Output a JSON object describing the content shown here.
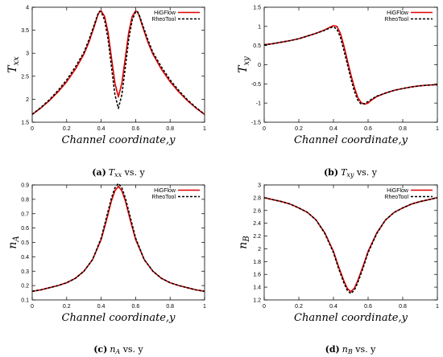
{
  "legend": {
    "series_a": "HiGFlow",
    "series_b": "RheoTool"
  },
  "colors": {
    "series_a": "#e00000",
    "series_b": "#000000"
  },
  "chart_data": [
    {
      "type": "line",
      "ylabel_main": "T",
      "ylabel_sub": "xx",
      "xlabel": "Channel coordinate,y",
      "caption_tag": "(a)",
      "caption_main": "T",
      "caption_sub": "xx",
      "caption_tail": " vs. y",
      "xlim": [
        0,
        1
      ],
      "ylim": [
        1.5,
        4
      ],
      "xticks": [
        "0",
        "0.2",
        "0.4",
        "0.6",
        "0.8",
        "1"
      ],
      "yticks": [
        "1.5",
        "2",
        "2.5",
        "3",
        "3.5",
        "4"
      ],
      "legend_position": "top-right",
      "grid": false,
      "series": [
        {
          "name": "HiGFlow",
          "x": [
            0,
            0.05,
            0.1,
            0.15,
            0.2,
            0.25,
            0.3,
            0.33,
            0.36,
            0.38,
            0.39,
            0.4,
            0.42,
            0.44,
            0.46,
            0.48,
            0.5,
            0.52,
            0.54,
            0.56,
            0.58,
            0.6,
            0.61,
            0.62,
            0.64,
            0.67,
            0.7,
            0.75,
            0.8,
            0.85,
            0.9,
            0.95,
            1
          ],
          "y": [
            1.67,
            1.81,
            1.97,
            2.16,
            2.38,
            2.65,
            2.98,
            3.25,
            3.58,
            3.82,
            3.9,
            3.92,
            3.8,
            3.45,
            2.9,
            2.35,
            2.05,
            2.35,
            2.9,
            3.45,
            3.8,
            3.92,
            3.9,
            3.82,
            3.58,
            3.25,
            2.98,
            2.65,
            2.38,
            2.16,
            1.97,
            1.81,
            1.67
          ]
        },
        {
          "name": "RheoTool",
          "x": [
            0,
            0.05,
            0.1,
            0.15,
            0.2,
            0.25,
            0.3,
            0.33,
            0.36,
            0.38,
            0.39,
            0.4,
            0.42,
            0.44,
            0.46,
            0.48,
            0.5,
            0.52,
            0.54,
            0.56,
            0.58,
            0.6,
            0.61,
            0.62,
            0.64,
            0.67,
            0.7,
            0.75,
            0.8,
            0.85,
            0.9,
            0.95,
            1
          ],
          "y": [
            1.67,
            1.82,
            1.99,
            2.19,
            2.42,
            2.7,
            3.02,
            3.3,
            3.62,
            3.84,
            3.91,
            3.9,
            3.72,
            3.3,
            2.7,
            2.1,
            1.8,
            2.1,
            2.7,
            3.3,
            3.72,
            3.9,
            3.91,
            3.84,
            3.62,
            3.3,
            3.02,
            2.7,
            2.42,
            2.19,
            1.99,
            1.82,
            1.67
          ]
        }
      ]
    },
    {
      "type": "line",
      "ylabel_main": "T",
      "ylabel_sub": "xy",
      "xlabel": "Channel coordinate,y",
      "caption_tag": "(b)",
      "caption_main": "T",
      "caption_sub": "xy",
      "caption_tail": " vs. y",
      "xlim": [
        0,
        1
      ],
      "ylim": [
        -1.5,
        1.5
      ],
      "xticks": [
        "0",
        "0.2",
        "0.4",
        "0.6",
        "0.8",
        "1"
      ],
      "yticks": [
        "-1.5",
        "-1",
        "-0.5",
        "0",
        "0.5",
        "1",
        "1.5"
      ],
      "legend_position": "top-right",
      "grid": false,
      "series": [
        {
          "name": "HiGFlow",
          "x": [
            0,
            0.05,
            0.1,
            0.15,
            0.2,
            0.25,
            0.3,
            0.35,
            0.38,
            0.4,
            0.42,
            0.44,
            0.46,
            0.48,
            0.5,
            0.52,
            0.54,
            0.56,
            0.58,
            0.6,
            0.62,
            0.65,
            0.7,
            0.75,
            0.8,
            0.85,
            0.9,
            0.95,
            1
          ],
          "y": [
            0.52,
            0.55,
            0.59,
            0.63,
            0.68,
            0.75,
            0.82,
            0.91,
            0.98,
            1.02,
            1.0,
            0.82,
            0.5,
            0.12,
            -0.25,
            -0.58,
            -0.85,
            -0.99,
            -1.03,
            -1.0,
            -0.92,
            -0.83,
            -0.74,
            -0.67,
            -0.62,
            -0.58,
            -0.55,
            -0.53,
            -0.52
          ]
        },
        {
          "name": "RheoTool",
          "x": [
            0,
            0.05,
            0.1,
            0.15,
            0.2,
            0.25,
            0.3,
            0.35,
            0.38,
            0.4,
            0.42,
            0.44,
            0.46,
            0.48,
            0.5,
            0.52,
            0.54,
            0.56,
            0.58,
            0.6,
            0.62,
            0.65,
            0.7,
            0.75,
            0.8,
            0.85,
            0.9,
            0.95,
            1
          ],
          "y": [
            0.52,
            0.55,
            0.59,
            0.63,
            0.68,
            0.75,
            0.82,
            0.9,
            0.96,
            0.99,
            0.93,
            0.72,
            0.38,
            0.02,
            -0.35,
            -0.68,
            -0.92,
            -1.03,
            -1.01,
            -0.96,
            -0.9,
            -0.82,
            -0.74,
            -0.67,
            -0.62,
            -0.58,
            -0.55,
            -0.53,
            -0.52
          ]
        }
      ]
    },
    {
      "type": "line",
      "ylabel_main": "n",
      "ylabel_sub": "A",
      "xlabel": "Channel coordinate,y",
      "caption_tag": "(c)",
      "caption_main": "n",
      "caption_sub": "A",
      "caption_tail": " vs. y",
      "xlim": [
        0,
        1
      ],
      "ylim": [
        0.1,
        0.9
      ],
      "xticks": [
        "0",
        "0.2",
        "0.4",
        "0.6",
        "0.8",
        "1"
      ],
      "yticks": [
        "0.1",
        "0.2",
        "0.3",
        "0.4",
        "0.5",
        "0.6",
        "0.7",
        "0.8",
        "0.9"
      ],
      "legend_position": "top-right",
      "grid": false,
      "series": [
        {
          "name": "HiGFlow",
          "x": [
            0,
            0.05,
            0.1,
            0.15,
            0.2,
            0.25,
            0.3,
            0.35,
            0.4,
            0.43,
            0.46,
            0.48,
            0.5,
            0.52,
            0.54,
            0.57,
            0.6,
            0.65,
            0.7,
            0.75,
            0.8,
            0.85,
            0.9,
            0.95,
            1
          ],
          "y": [
            0.16,
            0.17,
            0.185,
            0.2,
            0.22,
            0.25,
            0.3,
            0.38,
            0.52,
            0.65,
            0.79,
            0.86,
            0.89,
            0.86,
            0.79,
            0.65,
            0.52,
            0.38,
            0.3,
            0.25,
            0.22,
            0.2,
            0.185,
            0.17,
            0.16
          ]
        },
        {
          "name": "RheoTool",
          "x": [
            0,
            0.05,
            0.1,
            0.15,
            0.2,
            0.25,
            0.3,
            0.35,
            0.4,
            0.43,
            0.46,
            0.48,
            0.5,
            0.52,
            0.54,
            0.57,
            0.6,
            0.65,
            0.7,
            0.75,
            0.8,
            0.85,
            0.9,
            0.95,
            1
          ],
          "y": [
            0.16,
            0.17,
            0.185,
            0.2,
            0.22,
            0.25,
            0.3,
            0.38,
            0.53,
            0.67,
            0.81,
            0.88,
            0.91,
            0.88,
            0.81,
            0.67,
            0.53,
            0.38,
            0.3,
            0.25,
            0.22,
            0.2,
            0.185,
            0.17,
            0.16
          ]
        }
      ]
    },
    {
      "type": "line",
      "ylabel_main": "n",
      "ylabel_sub": "B",
      "xlabel": "Channel coordinate,y",
      "caption_tag": "(d)",
      "caption_main": "n",
      "caption_sub": "B",
      "caption_tail": " vs. y",
      "xlim": [
        0,
        1
      ],
      "ylim": [
        1.2,
        3
      ],
      "xticks": [
        "0",
        "0.2",
        "0.4",
        "0.6",
        "0.8",
        "1"
      ],
      "yticks": [
        "1.2",
        "1.4",
        "1.6",
        "1.8",
        "2",
        "2.2",
        "2.4",
        "2.6",
        "2.8",
        "3"
      ],
      "legend_position": "top-right",
      "grid": false,
      "series": [
        {
          "name": "HiGFlow",
          "x": [
            0,
            0.05,
            0.1,
            0.15,
            0.2,
            0.25,
            0.3,
            0.35,
            0.4,
            0.43,
            0.46,
            0.48,
            0.5,
            0.52,
            0.54,
            0.57,
            0.6,
            0.65,
            0.7,
            0.75,
            0.8,
            0.85,
            0.9,
            0.95,
            1
          ],
          "y": [
            2.8,
            2.77,
            2.74,
            2.7,
            2.64,
            2.57,
            2.45,
            2.25,
            1.96,
            1.72,
            1.5,
            1.38,
            1.33,
            1.38,
            1.5,
            1.72,
            1.96,
            2.25,
            2.45,
            2.57,
            2.64,
            2.7,
            2.74,
            2.77,
            2.8
          ]
        },
        {
          "name": "RheoTool",
          "x": [
            0,
            0.05,
            0.1,
            0.15,
            0.2,
            0.25,
            0.3,
            0.35,
            0.4,
            0.43,
            0.46,
            0.48,
            0.5,
            0.52,
            0.54,
            0.57,
            0.6,
            0.65,
            0.7,
            0.75,
            0.8,
            0.85,
            0.9,
            0.95,
            1
          ],
          "y": [
            2.8,
            2.77,
            2.74,
            2.7,
            2.64,
            2.57,
            2.45,
            2.24,
            1.94,
            1.69,
            1.47,
            1.35,
            1.3,
            1.35,
            1.47,
            1.69,
            1.94,
            2.24,
            2.45,
            2.57,
            2.64,
            2.7,
            2.74,
            2.77,
            2.8
          ]
        }
      ]
    }
  ]
}
